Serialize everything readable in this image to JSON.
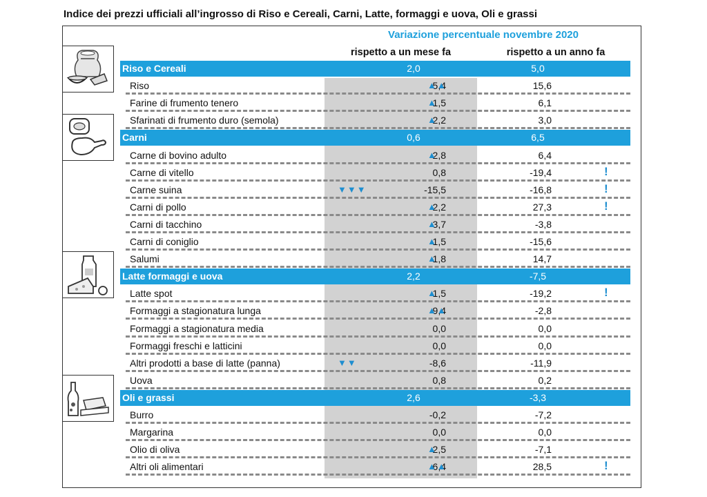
{
  "title": "Indice dei prezzi ufficiali all’ingrosso di Riso e Cereali, Carni, Latte, formaggi e uova, Oli e grassi",
  "header": {
    "main": "Variazione percentuale novembre 2020",
    "col_month": "rispetto a un mese fa",
    "col_year": "rispetto a un anno fa"
  },
  "colors": {
    "accent": "#1ea0dc",
    "gray_column": "#d2d2d2",
    "arrow": "#1e8ed0"
  },
  "icons": [
    "grain-bag-icon",
    "meat-icon",
    "dairy-icon",
    "oil-butter-icon"
  ],
  "rows": [
    {
      "type": "cat",
      "label": "Riso e Cereali",
      "month": "2,0",
      "year": "5,0"
    },
    {
      "type": "item",
      "label": "Riso",
      "month": "5,4",
      "year": "15,6",
      "arrow": "up",
      "count": 2
    },
    {
      "type": "item",
      "label": "Farine di frumento tenero",
      "month": "1,5",
      "year": "6,1",
      "arrow": "up",
      "count": 1
    },
    {
      "type": "item",
      "label": "Sfarinati di frumento duro (semola)",
      "month": "2,2",
      "year": "3,0",
      "arrow": "up",
      "count": 1
    },
    {
      "type": "cat",
      "label": "Carni",
      "month": "0,6",
      "year": "6,5"
    },
    {
      "type": "item",
      "label": "Carne di bovino adulto",
      "month": "2,8",
      "year": "6,4",
      "arrow": "up",
      "count": 1
    },
    {
      "type": "item",
      "label": "Carne di vitello",
      "month": "0,8",
      "year": "-19,4",
      "excl": "!"
    },
    {
      "type": "item",
      "label": "Carne suina",
      "month": "-15,5",
      "year": "-16,8",
      "arrow": "down",
      "count": 3,
      "excl": "!"
    },
    {
      "type": "item",
      "label": "Carni di pollo",
      "month": "2,2",
      "year": "27,3",
      "arrow": "up",
      "count": 1,
      "excl": "!"
    },
    {
      "type": "item",
      "label": "Carni di tacchino",
      "month": "3,7",
      "year": "-3,8",
      "arrow": "up",
      "count": 1
    },
    {
      "type": "item",
      "label": "Carni di coniglio",
      "month": "1,5",
      "year": "-15,6",
      "arrow": "up",
      "count": 1
    },
    {
      "type": "item",
      "label": "Salumi",
      "month": "1,8",
      "year": "14,7",
      "arrow": "up",
      "count": 1
    },
    {
      "type": "cat",
      "label": "Latte formaggi e uova",
      "month": "2,2",
      "year": "-7,5"
    },
    {
      "type": "item",
      "label": "Latte spot",
      "month": "1,5",
      "year": "-19,2",
      "arrow": "up",
      "count": 1,
      "excl": "!"
    },
    {
      "type": "item",
      "label": "Formaggi a stagionatura lunga",
      "month": "9,4",
      "year": "-2,8",
      "arrow": "up",
      "count": 2
    },
    {
      "type": "item",
      "label": "Formaggi a stagionatura media",
      "month": "0,0",
      "year": "0,0"
    },
    {
      "type": "item",
      "label": "Formaggi freschi e latticini",
      "month": "0,0",
      "year": "0,0"
    },
    {
      "type": "item",
      "label": "Altri prodotti a base di latte (panna)",
      "month": "-8,6",
      "year": "-11,9",
      "arrow": "down",
      "count": 2
    },
    {
      "type": "item",
      "label": "Uova",
      "month": "0,8",
      "year": "0,2"
    },
    {
      "type": "cat",
      "label": "Oli e grassi",
      "month": "2,6",
      "year": "-3,3"
    },
    {
      "type": "item",
      "label": "Burro",
      "month": "-0,2",
      "year": "-7,2"
    },
    {
      "type": "item",
      "label": "Margarina",
      "month": "0,0",
      "year": "0,0"
    },
    {
      "type": "item",
      "label": "Olio di oliva",
      "month": "2,5",
      "year": "-7,1",
      "arrow": "up",
      "count": 1
    },
    {
      "type": "item",
      "label": "Altri oli alimentari",
      "month": "6,4",
      "year": "28,5",
      "arrow": "up",
      "count": 2,
      "excl": "!"
    }
  ]
}
